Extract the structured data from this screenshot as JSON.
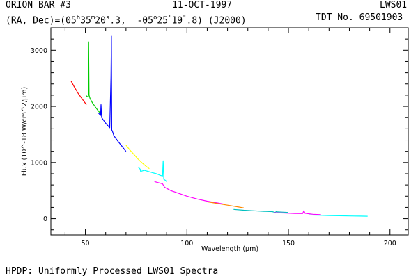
{
  "header": {
    "object": "ORION BAR #3",
    "date": "11-OCT-1997",
    "instrument": "LWS01",
    "coord_prefix": "(RA, Dec)=(05",
    "ra_h": "h",
    "ra_m": "35",
    "ra_m_sup": "m",
    "ra_s": "20",
    "ra_s_sup": "s",
    "ra_rest": ".3,  -05",
    "dec_deg_sup": "o",
    "dec_arcmin": "25",
    "dec_arcmin_sup": "'",
    "dec_arcsec": "19",
    "dec_arcsec_sup": "\"",
    "coord_suffix": ".8) (J2000)",
    "tdt": "TDT No. 69501903"
  },
  "footer": {
    "text": "HPDP: Uniformly Processed LWS01 Spectra"
  },
  "chart_data": {
    "type": "line",
    "xlabel": "Wavelength (μm)",
    "ylabel": "Flux (10^-18 W/cm^2/μm)",
    "xlim": [
      33,
      209
    ],
    "ylim": [
      -290,
      3400
    ],
    "xticks": [
      50,
      100,
      150,
      200
    ],
    "yticks": [
      0,
      1000,
      2000,
      3000
    ],
    "series": [
      {
        "color": "#ff0000",
        "x": [
          43.0,
          44.5,
          46.5,
          48.5,
          50.5
        ],
        "y": [
          2450,
          2350,
          2230,
          2130,
          2030
        ]
      },
      {
        "color": "#00cc00",
        "x": [
          50.5,
          51.0,
          51.4,
          51.6,
          51.8,
          52.3,
          53.5,
          55.5,
          57.5
        ],
        "y": [
          2190,
          2170,
          2180,
          3150,
          2200,
          2140,
          2060,
          1960,
          1870
        ]
      },
      {
        "color": "#0000ff",
        "x": [
          56.5,
          57.5,
          57.7,
          58.0,
          60.0,
          62.0,
          62.6,
          62.8,
          63.0,
          63.3,
          64.0,
          66.0,
          68.0,
          70.0
        ],
        "y": [
          1880,
          1840,
          2030,
          1800,
          1700,
          1620,
          2530,
          3250,
          1580,
          1560,
          1480,
          1380,
          1290,
          1200
        ]
      },
      {
        "color": "#ffff00",
        "x": [
          70.0,
          72.0,
          74.0,
          76.0,
          78.0,
          80.0,
          81.5
        ],
        "y": [
          1310,
          1220,
          1140,
          1060,
          990,
          930,
          890
        ]
      },
      {
        "color": "#00ffff",
        "x": [
          76.0,
          77.0,
          77.2,
          79.0,
          81.0,
          83.0,
          85.0,
          87.0,
          88.0,
          88.3,
          88.6,
          89.5,
          90.0
        ],
        "y": [
          920,
          880,
          840,
          860,
          840,
          820,
          800,
          770,
          760,
          1030,
          700,
          680,
          660
        ]
      },
      {
        "color": "#ff00ff",
        "x": [
          84.0,
          86.0,
          88.0,
          89.0,
          92.0,
          96.0,
          100.0,
          105.0,
          110.0,
          115.0,
          118.0
        ],
        "y": [
          660,
          640,
          620,
          560,
          500,
          450,
          400,
          350,
          310,
          280,
          260
        ]
      },
      {
        "color": "#ff8800",
        "x": [
          110.0,
          115.0,
          120.0,
          125.0,
          128.0
        ],
        "y": [
          300,
          270,
          240,
          210,
          190
        ]
      },
      {
        "color": "#00bfbf",
        "x": [
          123.0,
          128.0,
          133.0,
          138.0,
          142.0,
          143.5,
          144.0,
          144.5,
          150.0
        ],
        "y": [
          165,
          150,
          140,
          130,
          125,
          110,
          125,
          120,
          110
        ]
      },
      {
        "color": "#ff00ff",
        "x": [
          143.0,
          148.0,
          153.0,
          157.0,
          157.6,
          158.2,
          162.0,
          166.0
        ],
        "y": [
          105,
          100,
          92,
          90,
          140,
          95,
          78,
          70
        ]
      },
      {
        "color": "#00ffff",
        "x": [
          160.0,
          165.0,
          170.0,
          175.0,
          180.0,
          185.0,
          189.0
        ],
        "y": [
          65,
          60,
          55,
          52,
          48,
          45,
          43
        ]
      }
    ]
  }
}
